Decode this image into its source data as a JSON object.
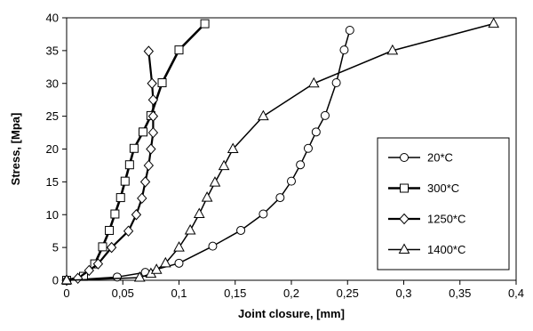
{
  "chart_data": {
    "type": "line",
    "xlabel": "Joint closure, [mm]",
    "ylabel": "Stress, [Mpa]",
    "xlim": [
      0,
      0.4
    ],
    "ylim": [
      0,
      40
    ],
    "x_ticks": [
      0,
      0.05,
      0.1,
      0.15,
      0.2,
      0.25,
      0.3,
      0.35,
      0.4
    ],
    "x_tick_labels": [
      "0",
      "0,05",
      "0,1",
      "0,15",
      "0,2",
      "0,25",
      "0,3",
      "0,35",
      "0,4"
    ],
    "y_ticks": [
      0,
      5,
      10,
      15,
      20,
      25,
      30,
      35,
      40
    ],
    "y_tick_labels": [
      "0",
      "5",
      "10",
      "15",
      "20",
      "25",
      "30",
      "35",
      "40"
    ],
    "grid": false,
    "legend_position": "right",
    "series": [
      {
        "name": "20*C",
        "marker": "circle",
        "color": "#000000",
        "points": [
          [
            0,
            0
          ],
          [
            0.045,
            0.5
          ],
          [
            0.07,
            1.2
          ],
          [
            0.1,
            2.6
          ],
          [
            0.13,
            5.2
          ],
          [
            0.155,
            7.6
          ],
          [
            0.175,
            10.1
          ],
          [
            0.19,
            12.6
          ],
          [
            0.2,
            15.1
          ],
          [
            0.208,
            17.6
          ],
          [
            0.215,
            20.1
          ],
          [
            0.222,
            22.6
          ],
          [
            0.23,
            25.1
          ],
          [
            0.24,
            30.1
          ],
          [
            0.247,
            35.1
          ],
          [
            0.252,
            38.1
          ]
        ]
      },
      {
        "name": "300*C",
        "marker": "square",
        "color": "#000000",
        "points": [
          [
            0,
            0
          ],
          [
            0.015,
            0.6
          ],
          [
            0.025,
            2.5
          ],
          [
            0.032,
            5.1
          ],
          [
            0.038,
            7.6
          ],
          [
            0.043,
            10.1
          ],
          [
            0.048,
            12.6
          ],
          [
            0.052,
            15.1
          ],
          [
            0.056,
            17.6
          ],
          [
            0.06,
            20.1
          ],
          [
            0.068,
            22.6
          ],
          [
            0.075,
            25.1
          ],
          [
            0.085,
            30.1
          ],
          [
            0.1,
            35.1
          ],
          [
            0.123,
            39.1
          ]
        ]
      },
      {
        "name": "1250*C",
        "marker": "diamond",
        "color": "#000000",
        "points": [
          [
            0,
            0
          ],
          [
            0.01,
            0.3
          ],
          [
            0.02,
            1.5
          ],
          [
            0.028,
            2.5
          ],
          [
            0.04,
            5.0
          ],
          [
            0.055,
            7.5
          ],
          [
            0.062,
            10.0
          ],
          [
            0.067,
            12.5
          ],
          [
            0.07,
            15.0
          ],
          [
            0.073,
            17.5
          ],
          [
            0.075,
            20.0
          ],
          [
            0.077,
            22.5
          ],
          [
            0.077,
            25.0
          ],
          [
            0.077,
            27.5
          ],
          [
            0.076,
            30.0
          ],
          [
            0.073,
            34.9
          ]
        ]
      },
      {
        "name": "1400*C",
        "marker": "triangle",
        "color": "#000000",
        "points": [
          [
            0,
            0
          ],
          [
            0.065,
            0.4
          ],
          [
            0.075,
            1.0
          ],
          [
            0.08,
            1.6
          ],
          [
            0.088,
            2.6
          ],
          [
            0.1,
            5.0
          ],
          [
            0.11,
            7.6
          ],
          [
            0.118,
            10.1
          ],
          [
            0.125,
            12.6
          ],
          [
            0.132,
            14.9
          ],
          [
            0.14,
            17.4
          ],
          [
            0.148,
            20.0
          ],
          [
            0.175,
            25.0
          ],
          [
            0.22,
            30.0
          ],
          [
            0.29,
            35.0
          ],
          [
            0.38,
            39.1
          ]
        ]
      }
    ]
  }
}
